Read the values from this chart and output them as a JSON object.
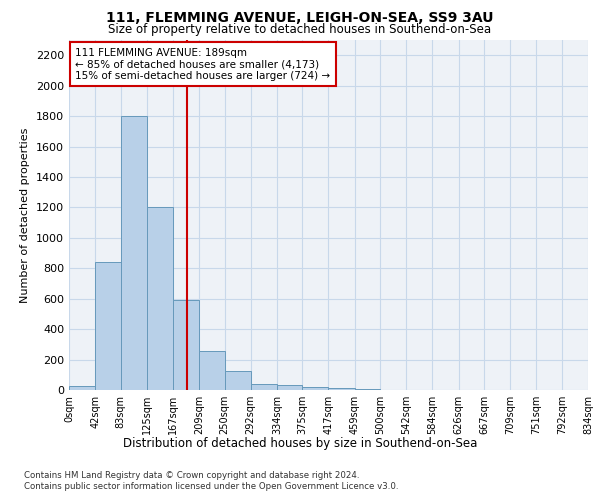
{
  "title": "111, FLEMMING AVENUE, LEIGH-ON-SEA, SS9 3AU",
  "subtitle": "Size of property relative to detached houses in Southend-on-Sea",
  "xlabel": "Distribution of detached houses by size in Southend-on-Sea",
  "ylabel": "Number of detached properties",
  "bin_edges": [
    0,
    42,
    83,
    125,
    167,
    209,
    250,
    292,
    334,
    375,
    417,
    459,
    500,
    542,
    584,
    626,
    667,
    709,
    751,
    792,
    834
  ],
  "bin_labels": [
    "0sqm",
    "42sqm",
    "83sqm",
    "125sqm",
    "167sqm",
    "209sqm",
    "250sqm",
    "292sqm",
    "334sqm",
    "375sqm",
    "417sqm",
    "459sqm",
    "500sqm",
    "542sqm",
    "584sqm",
    "626sqm",
    "667sqm",
    "709sqm",
    "751sqm",
    "792sqm",
    "834sqm"
  ],
  "bar_heights": [
    25,
    840,
    1800,
    1200,
    590,
    255,
    125,
    38,
    35,
    22,
    15,
    8,
    0,
    0,
    0,
    0,
    0,
    0,
    0,
    0
  ],
  "bar_color": "#b8d0e8",
  "bar_edgecolor": "#6699bb",
  "grid_color": "#c8d8ea",
  "property_line_x": 189,
  "property_line_color": "#cc0000",
  "annotation_text": "111 FLEMMING AVENUE: 189sqm\n← 85% of detached houses are smaller (4,173)\n15% of semi-detached houses are larger (724) →",
  "annotation_box_color": "#cc0000",
  "ylim": [
    0,
    2300
  ],
  "yticks": [
    0,
    200,
    400,
    600,
    800,
    1000,
    1200,
    1400,
    1600,
    1800,
    2000,
    2200
  ],
  "footer1": "Contains HM Land Registry data © Crown copyright and database right 2024.",
  "footer2": "Contains public sector information licensed under the Open Government Licence v3.0.",
  "background_color": "#eef2f7"
}
